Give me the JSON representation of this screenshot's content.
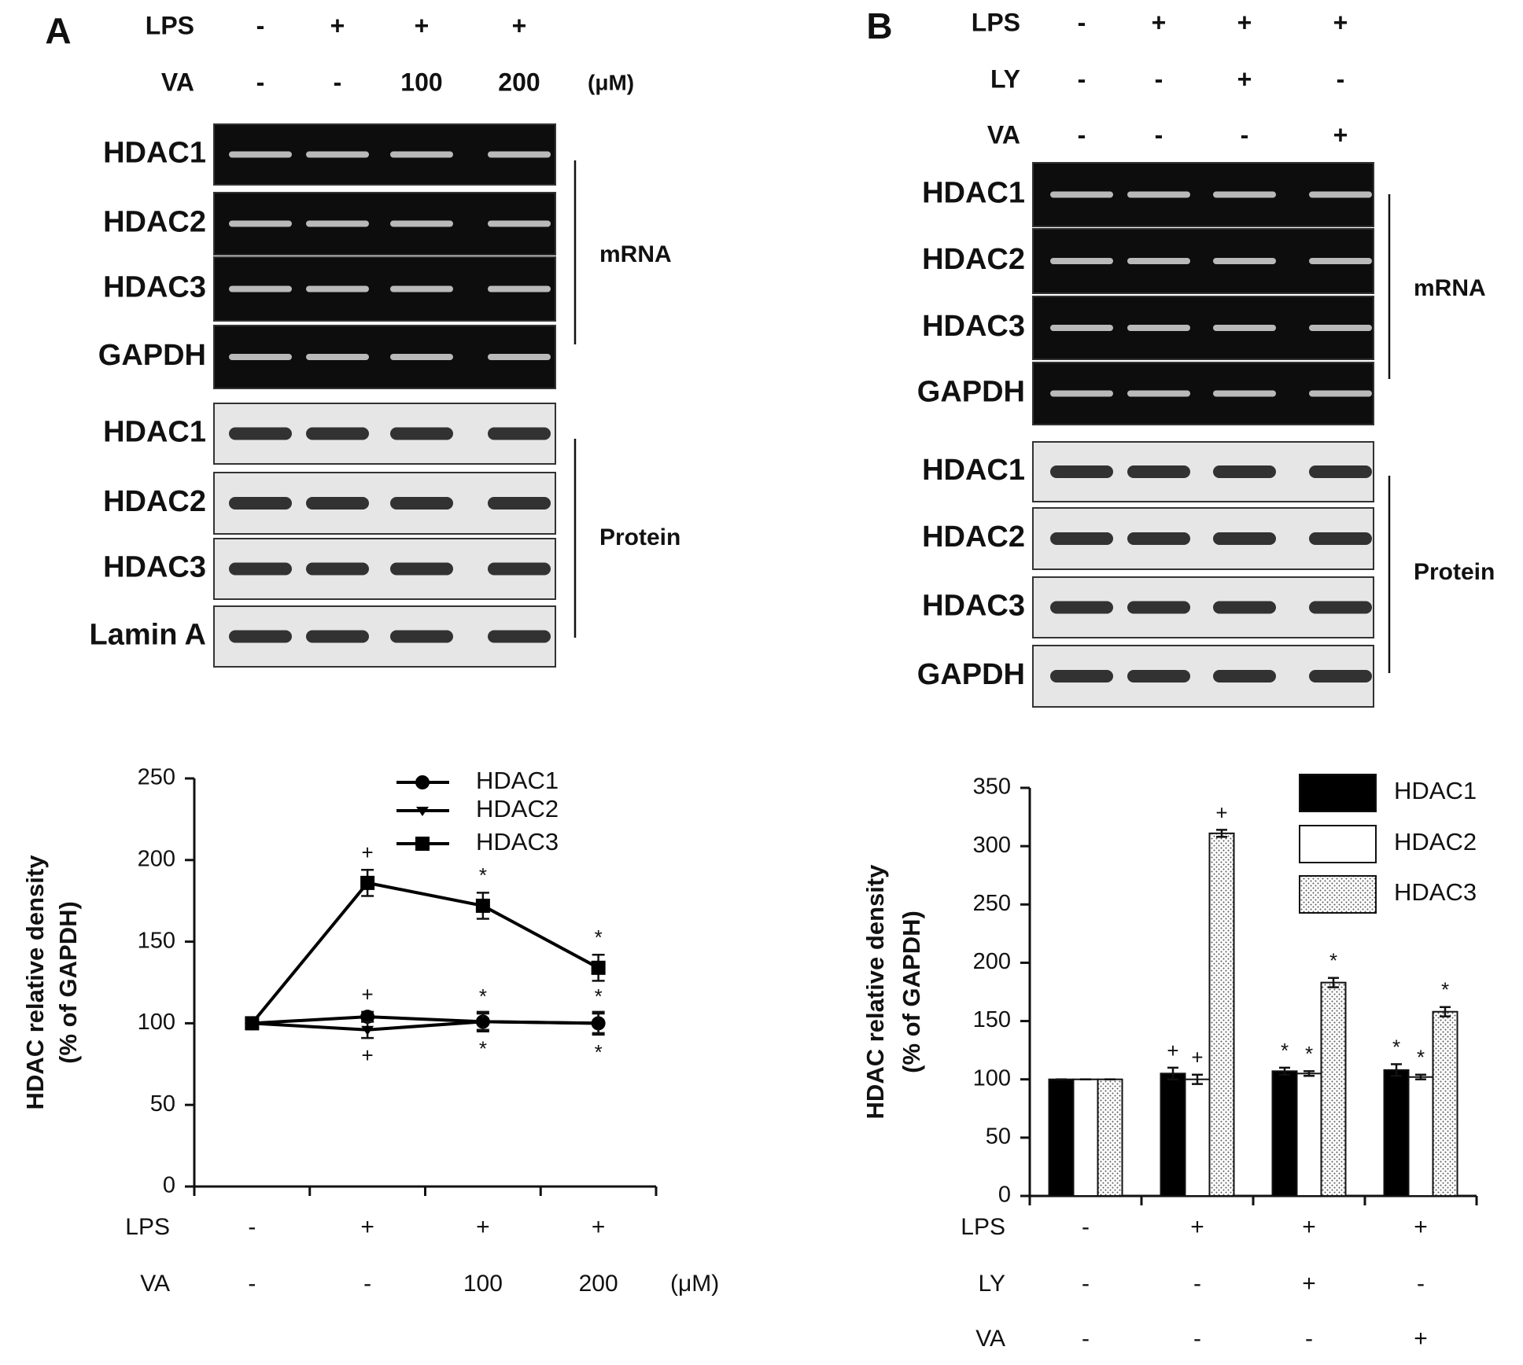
{
  "panels": [
    {
      "letter": "A",
      "conditions": [
        {
          "name": "LPS",
          "levels": [
            "-",
            "+",
            "+",
            "+"
          ]
        },
        {
          "name": "VA",
          "levels": [
            "-",
            "-",
            "100",
            "200"
          ]
        }
      ],
      "unit": "(μM)",
      "blots": [
        {
          "group": "mRNA",
          "rows": [
            "HDAC1",
            "HDAC2",
            "HDAC3",
            "GAPDH"
          ]
        },
        {
          "group": "Protein",
          "rows": [
            "HDAC1",
            "HDAC2",
            "HDAC3",
            "Lamin A"
          ]
        }
      ]
    },
    {
      "letter": "B",
      "conditions": [
        {
          "name": "LPS",
          "levels": [
            "-",
            "+",
            "+",
            "+"
          ]
        },
        {
          "name": "LY",
          "levels": [
            "-",
            "-",
            "+",
            "-"
          ]
        },
        {
          "name": "VA",
          "levels": [
            "-",
            "-",
            "-",
            "+"
          ]
        }
      ],
      "blots": [
        {
          "group": "mRNA",
          "rows": [
            "HDAC1",
            "HDAC2",
            "HDAC3",
            "GAPDH"
          ]
        },
        {
          "group": "Protein",
          "rows": [
            "HDAC1",
            "HDAC2",
            "HDAC3",
            "GAPDH"
          ]
        }
      ]
    }
  ],
  "chart_data": [
    {
      "type": "line",
      "ylabel": [
        "HDAC relative density",
        "(% of GAPDH)"
      ],
      "conditions": [
        {
          "name": "LPS",
          "levels": [
            "-",
            "+",
            "+",
            "+"
          ]
        },
        {
          "name": "VA",
          "levels": [
            "-",
            "-",
            "100",
            "200"
          ]
        }
      ],
      "unit": "(μM)",
      "ylim": [
        0,
        250
      ],
      "yticks": [
        0,
        50,
        100,
        150,
        200,
        250
      ],
      "series": [
        {
          "name": "HDAC1",
          "color": "#000000",
          "marker": "circle",
          "values": [
            100,
            104,
            101,
            100
          ],
          "errors": [
            0,
            3,
            5,
            6
          ],
          "significance": [
            null,
            "+",
            "*",
            "*"
          ],
          "significance_side": "above"
        },
        {
          "name": "HDAC2",
          "color": "#000000",
          "marker": "diamond",
          "values": [
            100,
            96,
            101,
            100
          ],
          "errors": [
            0,
            5,
            6,
            7
          ],
          "significance": [
            null,
            "+",
            "*",
            "*"
          ],
          "significance_side": "below"
        },
        {
          "name": "HDAC3",
          "color": "#000000",
          "marker": "square",
          "values": [
            100,
            186,
            172,
            134
          ],
          "errors": [
            0,
            8,
            8,
            8
          ],
          "significance": [
            null,
            "+",
            "*",
            "*"
          ],
          "significance_side": "above"
        }
      ]
    },
    {
      "type": "bar",
      "ylabel": [
        "HDAC relative density",
        "(% of GAPDH)"
      ],
      "conditions": [
        {
          "name": "LPS",
          "levels": [
            "-",
            "+",
            "+",
            "+"
          ]
        },
        {
          "name": "LY",
          "levels": [
            "-",
            "-",
            "+",
            "-"
          ]
        },
        {
          "name": "VA",
          "levels": [
            "-",
            "-",
            "-",
            "+"
          ]
        }
      ],
      "ylim": [
        0,
        350
      ],
      "yticks": [
        0,
        50,
        100,
        150,
        200,
        250,
        300,
        350
      ],
      "series": [
        {
          "name": "HDAC1",
          "color": "#000000",
          "values": [
            100,
            105,
            107,
            108
          ],
          "errors": [
            0,
            5,
            3,
            5
          ],
          "significance": [
            null,
            "+",
            "*",
            "*"
          ]
        },
        {
          "name": "HDAC2",
          "color": "#ffffff",
          "values": [
            100,
            100,
            105,
            102
          ],
          "errors": [
            0,
            4,
            2,
            2
          ],
          "significance": [
            null,
            "+",
            "*",
            "*"
          ]
        },
        {
          "name": "HDAC3",
          "color": "#ffffff",
          "pattern": "dots",
          "values": [
            100,
            311,
            183,
            158
          ],
          "errors": [
            0,
            3,
            4,
            4
          ],
          "significance": [
            null,
            "+",
            "*",
            "*"
          ]
        }
      ]
    }
  ]
}
